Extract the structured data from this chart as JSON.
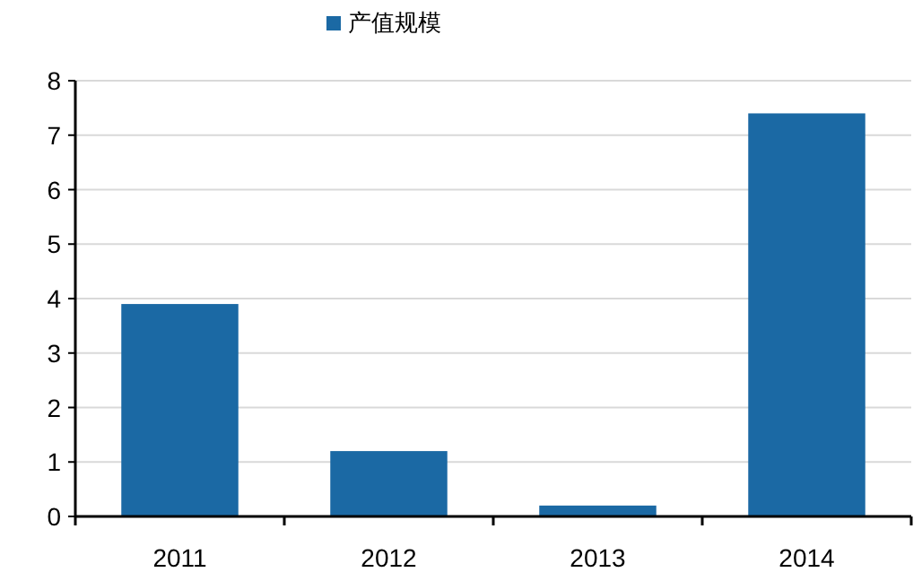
{
  "chart_data": {
    "type": "bar",
    "categories": [
      "2011",
      "2012",
      "2013",
      "2014"
    ],
    "series": [
      {
        "name": "产值规模",
        "color": "#1b69a4",
        "values": [
          3.9,
          1.2,
          0.2,
          7.4
        ]
      }
    ],
    "ylim": [
      0,
      8
    ],
    "yticks": [
      0,
      1,
      2,
      3,
      4,
      5,
      6,
      7,
      8
    ],
    "grid": "y",
    "legend": "top"
  }
}
